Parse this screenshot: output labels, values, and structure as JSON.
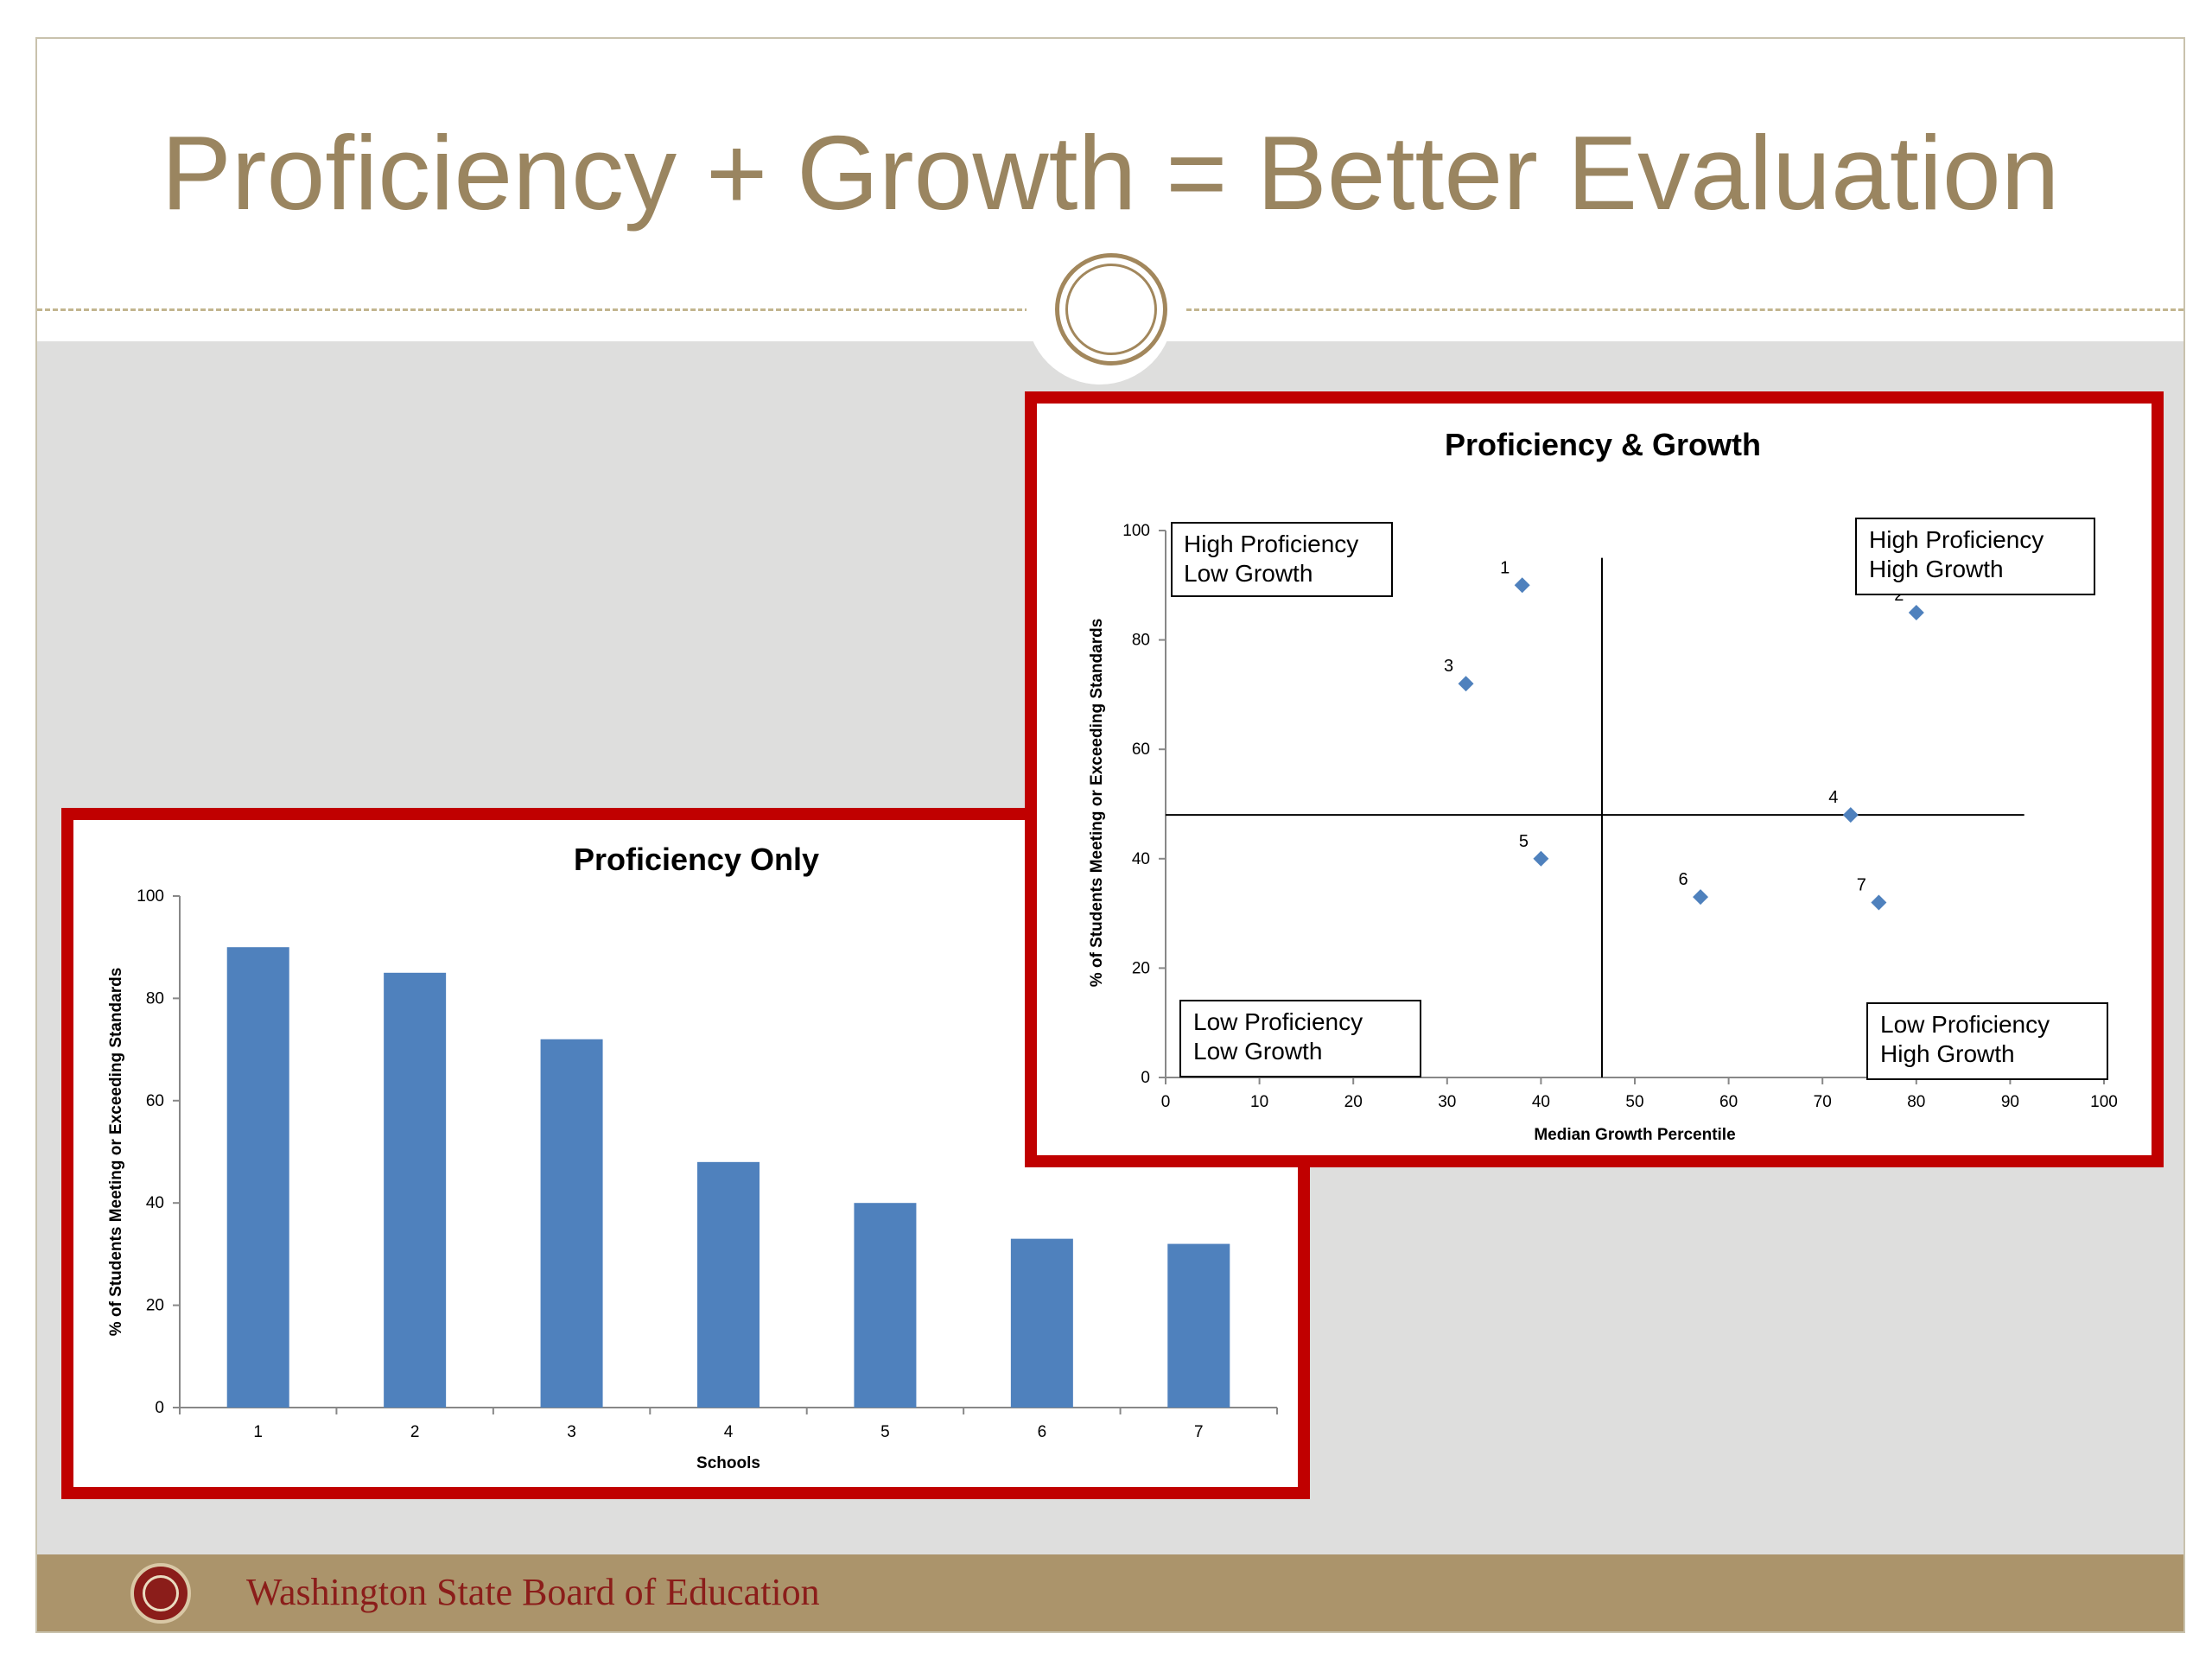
{
  "slide": {
    "title": "Proficiency + Growth = Better Evaluation",
    "footer_org": "Washington State Board of Education",
    "colors": {
      "title": "#9a8560",
      "panel_border": "#c00000",
      "footer_band": "#ab946b",
      "footer_text": "#8b1d1a",
      "bar": "#4f81bd",
      "point": "#4f81bd"
    }
  },
  "chart_data": [
    {
      "type": "bar",
      "title": "Proficiency Only",
      "xlabel": "Schools",
      "ylabel": "% of Students Meeting or Exceeding Standards",
      "categories": [
        "1",
        "2",
        "3",
        "4",
        "5",
        "6",
        "7"
      ],
      "values": [
        90,
        85,
        72,
        48,
        40,
        33,
        32
      ],
      "ylim": [
        0,
        100
      ],
      "yticks": [
        0,
        20,
        40,
        60,
        80,
        100
      ],
      "grid": false,
      "legend": "none"
    },
    {
      "type": "scatter",
      "title": "Proficiency & Growth",
      "xlabel": "Median Growth Percentile",
      "ylabel": "% of Students Meeting or Exceeding Standards",
      "xlim": [
        0,
        100
      ],
      "ylim": [
        0,
        100
      ],
      "xticks": [
        0,
        10,
        20,
        30,
        40,
        50,
        60,
        70,
        80,
        90,
        100
      ],
      "yticks": [
        0,
        20,
        40,
        60,
        80,
        100
      ],
      "points": [
        {
          "label": "1",
          "x": 38,
          "y": 90
        },
        {
          "label": "2",
          "x": 80,
          "y": 85
        },
        {
          "label": "3",
          "x": 32,
          "y": 72
        },
        {
          "label": "4",
          "x": 73,
          "y": 48
        },
        {
          "label": "5",
          "x": 40,
          "y": 40
        },
        {
          "label": "6",
          "x": 57,
          "y": 33
        },
        {
          "label": "7",
          "x": 76,
          "y": 32
        }
      ],
      "divider_x": 46.5,
      "divider_y": 48,
      "quadrants": [
        {
          "line1": "High Proficiency",
          "line2": "Low Growth"
        },
        {
          "line1": "High Proficiency",
          "line2": "High Growth"
        },
        {
          "line1": "Low Proficiency",
          "line2": "Low Growth"
        },
        {
          "line1": "Low Proficiency",
          "line2": "High Growth"
        }
      ],
      "grid": false,
      "legend": "none"
    }
  ]
}
